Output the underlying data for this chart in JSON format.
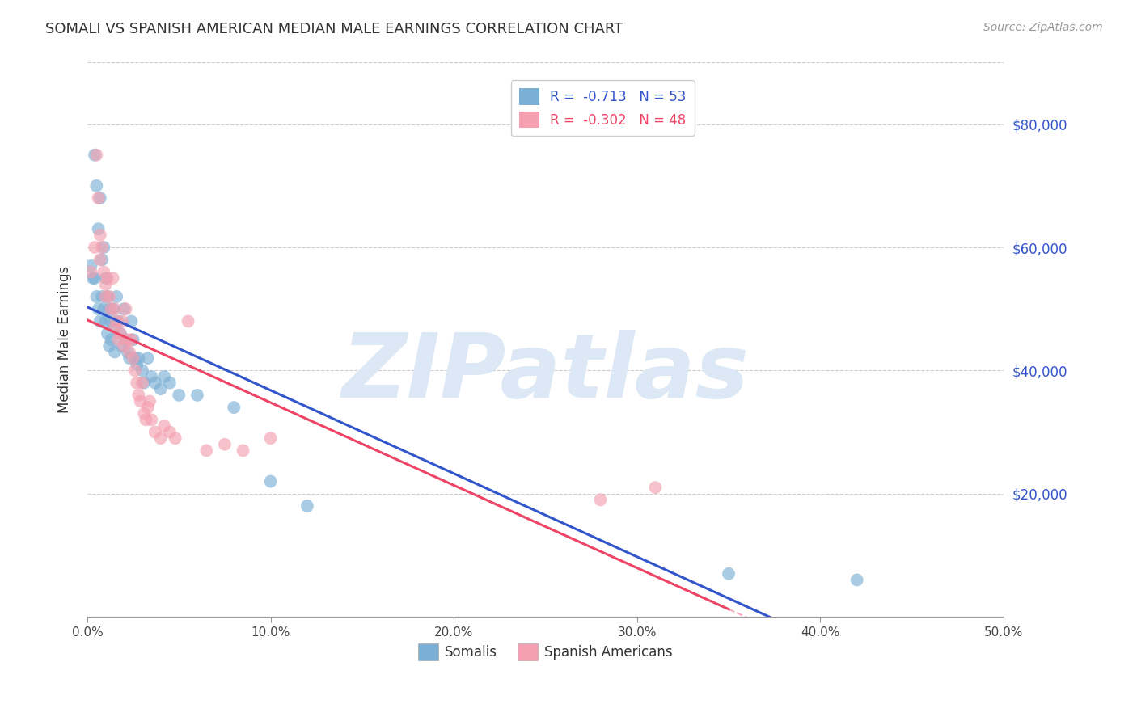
{
  "title": "SOMALI VS SPANISH AMERICAN MEDIAN MALE EARNINGS CORRELATION CHART",
  "source": "Source: ZipAtlas.com",
  "ylabel": "Median Male Earnings",
  "ytick_labels": [
    "$80,000",
    "$60,000",
    "$40,000",
    "$20,000"
  ],
  "ytick_values": [
    80000,
    60000,
    40000,
    20000
  ],
  "xlim": [
    0.0,
    0.5
  ],
  "ylim": [
    0,
    90000
  ],
  "legend_blue_label": "R =  -0.713   N = 53",
  "legend_pink_label": "R =  -0.302   N = 48",
  "legend_bottom_blue": "Somalis",
  "legend_bottom_pink": "Spanish Americans",
  "somali_color": "#7bafd4",
  "spanish_color": "#f4a0b0",
  "somali_line_color": "#3355cc",
  "spanish_line_color": "#ee4466",
  "background_color": "#ffffff",
  "grid_color": "#cccccc",
  "somali_x": [
    0.002,
    0.003,
    0.004,
    0.004,
    0.005,
    0.005,
    0.006,
    0.006,
    0.007,
    0.007,
    0.008,
    0.008,
    0.009,
    0.009,
    0.01,
    0.01,
    0.011,
    0.011,
    0.012,
    0.012,
    0.013,
    0.013,
    0.014,
    0.015,
    0.015,
    0.016,
    0.017,
    0.018,
    0.019,
    0.02,
    0.021,
    0.022,
    0.023,
    0.024,
    0.025,
    0.026,
    0.027,
    0.028,
    0.03,
    0.031,
    0.033,
    0.035,
    0.037,
    0.04,
    0.042,
    0.045,
    0.05,
    0.06,
    0.08,
    0.1,
    0.12,
    0.35,
    0.42
  ],
  "somali_y": [
    57000,
    55000,
    75000,
    55000,
    70000,
    52000,
    63000,
    50000,
    68000,
    48000,
    58000,
    52000,
    60000,
    50000,
    55000,
    48000,
    52000,
    46000,
    50000,
    44000,
    48000,
    45000,
    50000,
    47000,
    43000,
    52000,
    48000,
    46000,
    44000,
    50000,
    45000,
    43000,
    42000,
    48000,
    45000,
    42000,
    41000,
    42000,
    40000,
    38000,
    42000,
    39000,
    38000,
    37000,
    39000,
    38000,
    36000,
    36000,
    34000,
    22000,
    18000,
    7000,
    6000
  ],
  "spanish_x": [
    0.002,
    0.004,
    0.005,
    0.006,
    0.007,
    0.007,
    0.008,
    0.009,
    0.01,
    0.01,
    0.011,
    0.012,
    0.013,
    0.014,
    0.015,
    0.015,
    0.016,
    0.017,
    0.018,
    0.019,
    0.02,
    0.021,
    0.022,
    0.023,
    0.024,
    0.025,
    0.026,
    0.027,
    0.028,
    0.029,
    0.03,
    0.031,
    0.032,
    0.033,
    0.034,
    0.035,
    0.037,
    0.04,
    0.042,
    0.045,
    0.048,
    0.055,
    0.065,
    0.075,
    0.085,
    0.1,
    0.28,
    0.31
  ],
  "spanish_y": [
    56000,
    60000,
    75000,
    68000,
    62000,
    58000,
    60000,
    56000,
    54000,
    52000,
    55000,
    52000,
    50000,
    55000,
    50000,
    47000,
    48000,
    45000,
    46000,
    48000,
    44000,
    50000,
    45000,
    43000,
    45000,
    42000,
    40000,
    38000,
    36000,
    35000,
    38000,
    33000,
    32000,
    34000,
    35000,
    32000,
    30000,
    29000,
    31000,
    30000,
    29000,
    48000,
    27000,
    28000,
    27000,
    29000,
    19000,
    21000
  ]
}
